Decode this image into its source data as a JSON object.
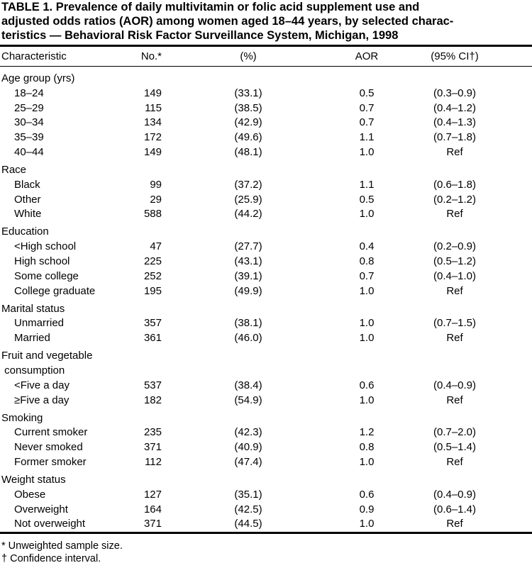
{
  "title": [
    "TABLE 1. Prevalence of daily multivitamin or folic acid supplement use and",
    "adjusted odds ratios (AOR) among women aged 18–44 years, by selected charac-",
    "teristics — Behavioral Risk Factor Surveillance System, Michigan, 1998"
  ],
  "table": {
    "header": [
      "Characteristic",
      "No.*",
      "(%)",
      "AOR",
      "(95% CI†)"
    ],
    "groups": [
      {
        "label": [
          "Age group (yrs)"
        ],
        "rows": [
          [
            "18–24",
            "149",
            "(33.1)",
            "0.5",
            "(0.3–0.9)"
          ],
          [
            "25–29",
            "115",
            "(38.5)",
            "0.7",
            "(0.4–1.2)"
          ],
          [
            "30–34",
            "134",
            "(42.9)",
            "0.7",
            "(0.4–1.3)"
          ],
          [
            "35–39",
            "172",
            "(49.6)",
            "1.1",
            "(0.7–1.8)"
          ],
          [
            "40–44",
            "149",
            "(48.1)",
            "1.0",
            "Ref"
          ]
        ]
      },
      {
        "label": [
          "Race"
        ],
        "rows": [
          [
            "Black",
            "99",
            "(37.2)",
            "1.1",
            "(0.6–1.8)"
          ],
          [
            "Other",
            "29",
            "(25.9)",
            "0.5",
            "(0.2–1.2)"
          ],
          [
            "White",
            "588",
            "(44.2)",
            "1.0",
            "Ref"
          ]
        ]
      },
      {
        "label": [
          "Education"
        ],
        "rows": [
          [
            "<High school",
            "47",
            "(27.7)",
            "0.4",
            "(0.2–0.9)"
          ],
          [
            "High school",
            "225",
            "(43.1)",
            "0.8",
            "(0.5–1.2)"
          ],
          [
            "Some college",
            "252",
            "(39.1)",
            "0.7",
            "(0.4–1.0)"
          ],
          [
            "College graduate",
            "195",
            "(49.9)",
            "1.0",
            "Ref"
          ]
        ]
      },
      {
        "label": [
          "Marital status"
        ],
        "rows": [
          [
            "Unmarried",
            "357",
            "(38.1)",
            "1.0",
            "(0.7–1.5)"
          ],
          [
            "Married",
            "361",
            "(46.0)",
            "1.0",
            "Ref"
          ]
        ]
      },
      {
        "label": [
          "Fruit and vegetable",
          " consumption"
        ],
        "rows": [
          [
            "<Five a day",
            "537",
            "(38.4)",
            "0.6",
            "(0.4–0.9)"
          ],
          [
            "≥Five a day",
            "182",
            "(54.9)",
            "1.0",
            "Ref"
          ]
        ]
      },
      {
        "label": [
          "Smoking"
        ],
        "rows": [
          [
            "Current smoker",
            "235",
            "(42.3)",
            "1.2",
            "(0.7–2.0)"
          ],
          [
            "Never smoked",
            "371",
            "(40.9)",
            "0.8",
            "(0.5–1.4)"
          ],
          [
            "Former smoker",
            "112",
            "(47.4)",
            "1.0",
            "Ref"
          ]
        ]
      },
      {
        "label": [
          "Weight status"
        ],
        "rows": [
          [
            "Obese",
            "127",
            "(35.1)",
            "0.6",
            "(0.4–0.9)"
          ],
          [
            "Overweight",
            "164",
            "(42.5)",
            "0.9",
            "(0.6–1.4)"
          ],
          [
            "Not overweight",
            "371",
            "(44.5)",
            "1.0",
            "Ref"
          ]
        ]
      }
    ]
  },
  "footnotes": [
    "* Unweighted sample size.",
    "† Confidence interval."
  ]
}
